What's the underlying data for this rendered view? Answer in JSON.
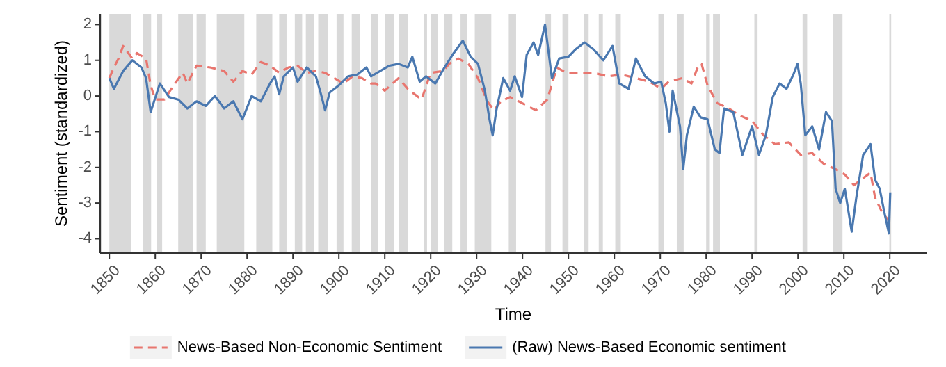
{
  "chart_data": {
    "type": "line",
    "xlabel": "Time",
    "ylabel": "Sentiment (standardized)",
    "xlim": [
      1848,
      2028
    ],
    "ylim": [
      -4.4,
      2.3
    ],
    "xticks": [
      1850,
      1860,
      1870,
      1880,
      1890,
      1900,
      1910,
      1920,
      1930,
      1940,
      1950,
      1960,
      1970,
      1980,
      1990,
      2000,
      2010,
      2020
    ],
    "yticks": [
      -4,
      -3,
      -2,
      -1,
      0,
      1,
      2
    ],
    "grid": false,
    "legend": "bottom",
    "bands": [
      {
        "axis": "x",
        "from": 1850,
        "to": 1854.8,
        "color": "#d9d9d9"
      },
      {
        "axis": "x",
        "from": 1857.3,
        "to": 1859.1,
        "color": "#d9d9d9"
      },
      {
        "axis": "x",
        "from": 1860.3,
        "to": 1861.5,
        "color": "#d9d9d9"
      },
      {
        "axis": "x",
        "from": 1865,
        "to": 1868.2,
        "color": "#d9d9d9"
      },
      {
        "axis": "x",
        "from": 1869,
        "to": 1871,
        "color": "#d9d9d9"
      },
      {
        "axis": "x",
        "from": 1873.4,
        "to": 1879.4,
        "color": "#d9d9d9"
      },
      {
        "axis": "x",
        "from": 1882,
        "to": 1885.5,
        "color": "#d9d9d9"
      },
      {
        "axis": "x",
        "from": 1887,
        "to": 1888.6,
        "color": "#d9d9d9"
      },
      {
        "axis": "x",
        "from": 1890.4,
        "to": 1892,
        "color": "#d9d9d9"
      },
      {
        "axis": "x",
        "from": 1892.8,
        "to": 1894.6,
        "color": "#d9d9d9"
      },
      {
        "axis": "x",
        "from": 1895.5,
        "to": 1897.7,
        "color": "#d9d9d9"
      },
      {
        "axis": "x",
        "from": 1899.5,
        "to": 1901,
        "color": "#d9d9d9"
      },
      {
        "axis": "x",
        "from": 1902.8,
        "to": 1904.6,
        "color": "#d9d9d9"
      },
      {
        "axis": "x",
        "from": 1907,
        "to": 1908.6,
        "color": "#d9d9d9"
      },
      {
        "axis": "x",
        "from": 1910,
        "to": 1912,
        "color": "#d9d9d9"
      },
      {
        "axis": "x",
        "from": 1913,
        "to": 1915,
        "color": "#d9d9d9"
      },
      {
        "axis": "x",
        "from": 1918.6,
        "to": 1919.2,
        "color": "#d9d9d9"
      },
      {
        "axis": "x",
        "from": 1920,
        "to": 1921.6,
        "color": "#d9d9d9"
      },
      {
        "axis": "x",
        "from": 1923,
        "to": 1924.7,
        "color": "#d9d9d9"
      },
      {
        "axis": "x",
        "from": 1926.5,
        "to": 1928,
        "color": "#d9d9d9"
      },
      {
        "axis": "x",
        "from": 1929.6,
        "to": 1933.2,
        "color": "#d9d9d9"
      },
      {
        "axis": "x",
        "from": 1937,
        "to": 1938.6,
        "color": "#d9d9d9"
      },
      {
        "axis": "x",
        "from": 1945,
        "to": 1946.2,
        "color": "#d9d9d9"
      },
      {
        "axis": "x",
        "from": 1948.7,
        "to": 1950,
        "color": "#d9d9d9"
      },
      {
        "axis": "x",
        "from": 1953.3,
        "to": 1954.4,
        "color": "#d9d9d9"
      },
      {
        "axis": "x",
        "from": 1956.6,
        "to": 1957.5,
        "color": "#d9d9d9"
      },
      {
        "axis": "x",
        "from": 1960.2,
        "to": 1961.4,
        "color": "#d9d9d9"
      },
      {
        "axis": "x",
        "from": 1969.6,
        "to": 1970.8,
        "color": "#d9d9d9"
      },
      {
        "axis": "x",
        "from": 1973.6,
        "to": 1975.1,
        "color": "#d9d9d9"
      },
      {
        "axis": "x",
        "from": 1980,
        "to": 1980.8,
        "color": "#d9d9d9"
      },
      {
        "axis": "x",
        "from": 1981.5,
        "to": 1983,
        "color": "#d9d9d9"
      },
      {
        "axis": "x",
        "from": 1990.5,
        "to": 1991.2,
        "color": "#d9d9d9"
      },
      {
        "axis": "x",
        "from": 2001,
        "to": 2002,
        "color": "#d9d9d9"
      },
      {
        "axis": "x",
        "from": 2007.6,
        "to": 2009.7,
        "color": "#d9d9d9"
      },
      {
        "axis": "x",
        "from": 2019.9,
        "to": 2020.3,
        "color": "#d9d9d9"
      }
    ],
    "series": [
      {
        "name": "News-Based Non-Economic Sentiment",
        "color": "#e8766f",
        "line_style": "dashed",
        "x": [
          1850,
          1851,
          1852,
          1853,
          1855,
          1856,
          1858,
          1859,
          1860,
          1862,
          1864,
          1866,
          1867,
          1869,
          1872,
          1875,
          1877,
          1879,
          1881,
          1883,
          1885,
          1887,
          1889,
          1891,
          1893,
          1895,
          1897,
          1899,
          1901,
          1903,
          1905,
          1907,
          1908,
          1910,
          1913,
          1915,
          1918,
          1920,
          1922.7,
          1924,
          1926,
          1928.2,
          1930.3,
          1932.3,
          1933.8,
          1935.3,
          1937.3,
          1939.9,
          1942.9,
          1945.4,
          1947.5,
          1949.5,
          1952.5,
          1955.5,
          1958.6,
          1961.6,
          1964.7,
          1967.7,
          1970.2,
          1971.8,
          1974.8,
          1976.8,
          1978.3,
          1979,
          1980.3,
          1982.4,
          1984.9,
          1987.4,
          1990,
          1992.5,
          1995,
          1998,
          2000.6,
          2003.1,
          2005.6,
          2008.2,
          2010.2,
          2012.2,
          2014.2,
          2015.8,
          2016.8,
          2018.3,
          2019.8
        ],
        "values": [
          0.5,
          0.8,
          1.05,
          1.4,
          1.05,
          1.2,
          1.05,
          0.3,
          -0.1,
          -0.1,
          0.3,
          0.65,
          0.35,
          0.85,
          0.8,
          0.7,
          0.4,
          0.7,
          0.6,
          0.95,
          0.85,
          0.65,
          0.8,
          0.85,
          0.65,
          0.7,
          0.65,
          0.5,
          0.35,
          0.55,
          0.5,
          0.35,
          0.35,
          0.15,
          0.5,
          0.2,
          -0.1,
          0.65,
          0.7,
          0.9,
          1.05,
          0.9,
          0.5,
          -0.15,
          -0.4,
          -0.15,
          -0.03,
          -0.2,
          -0.4,
          -0.1,
          0.8,
          0.65,
          0.65,
          0.65,
          0.55,
          0.6,
          0.5,
          0.4,
          0.2,
          0.4,
          0.5,
          0.35,
          0.85,
          0.9,
          0.3,
          -0.2,
          -0.35,
          -0.55,
          -0.7,
          -1.1,
          -1.35,
          -1.3,
          -1.65,
          -1.6,
          -1.9,
          -2.05,
          -2.2,
          -2.5,
          -2.3,
          -2.15,
          -2.85,
          -3.25,
          -3.5
        ]
      },
      {
        "name": "(Raw) News-Based Economic sentiment",
        "color": "#4a78b0",
        "line_style": "solid",
        "x": [
          1850,
          1851,
          1853,
          1855,
          1857,
          1858,
          1859,
          1861,
          1863,
          1865,
          1867,
          1869,
          1871,
          1873,
          1875,
          1877,
          1879,
          1881,
          1883,
          1885,
          1886,
          1887,
          1888,
          1890,
          1891,
          1893,
          1895,
          1896,
          1897,
          1898,
          1900,
          1902,
          1904,
          1906,
          1907,
          1909,
          1911,
          1913,
          1915,
          1916,
          1917.6,
          1919,
          1921,
          1923,
          1925,
          1927,
          1928.7,
          1930.3,
          1931.8,
          1932.8,
          1933.5,
          1934.3,
          1935.8,
          1937.3,
          1938.3,
          1939.9,
          1940.9,
          1942.4,
          1943.4,
          1944.9,
          1946.4,
          1948,
          1950,
          1951.5,
          1953.5,
          1955.5,
          1957.6,
          1959.6,
          1961.1,
          1963.1,
          1964.7,
          1966.7,
          1968.7,
          1970.2,
          1971.2,
          1972,
          1972.7,
          1974.3,
          1975,
          1975.8,
          1977.3,
          1978.8,
          1980.3,
          1981.9,
          1982.9,
          1983.9,
          1985.9,
          1987.9,
          1990,
          1991.5,
          1993,
          1994.5,
          1996,
          1997.5,
          1999,
          1999.9,
          2000.6,
          2001.6,
          2003.1,
          2004.6,
          2006.1,
          2007.4,
          2008.2,
          2009.2,
          2010.2,
          2011.7,
          2012.7,
          2014.2,
          2015.8,
          2016.8,
          2017.8,
          2018.8,
          2019.8,
          2020.1
        ],
        "values": [
          0.5,
          0.2,
          0.7,
          1.0,
          0.8,
          0.5,
          -0.45,
          0.35,
          -0.03,
          -0.1,
          -0.35,
          -0.15,
          -0.28,
          0,
          -0.35,
          -0.15,
          -0.65,
          0,
          -0.15,
          0.35,
          0.55,
          0.05,
          0.55,
          0.8,
          0.4,
          0.8,
          0.55,
          0.1,
          -0.4,
          0.1,
          0.3,
          0.55,
          0.6,
          0.8,
          0.55,
          0.7,
          0.85,
          0.9,
          0.8,
          1.1,
          0.4,
          0.55,
          0.35,
          0.8,
          1.2,
          1.55,
          1.1,
          0.9,
          0.15,
          -0.65,
          -1.1,
          -0.4,
          0.5,
          0.15,
          0.55,
          -0.03,
          1.15,
          1.5,
          1.15,
          2.0,
          0.5,
          1.05,
          1.1,
          1.3,
          1.5,
          1.3,
          1.0,
          1.4,
          0.35,
          0.2,
          1.05,
          0.55,
          0.35,
          0.4,
          -0.2,
          -1.0,
          0.15,
          -0.85,
          -2.05,
          -1.1,
          -0.3,
          -0.6,
          -0.65,
          -1.5,
          -1.6,
          -0.35,
          -0.45,
          -1.65,
          -0.85,
          -1.65,
          -1.1,
          -0.03,
          0.35,
          0.2,
          0.6,
          0.9,
          0.35,
          -1.1,
          -0.85,
          -1.5,
          -0.45,
          -0.7,
          -2.6,
          -3.0,
          -2.6,
          -3.8,
          -2.85,
          -1.65,
          -1.35,
          -2.35,
          -2.6,
          -3.25,
          -3.85,
          -2.7
        ]
      }
    ]
  }
}
